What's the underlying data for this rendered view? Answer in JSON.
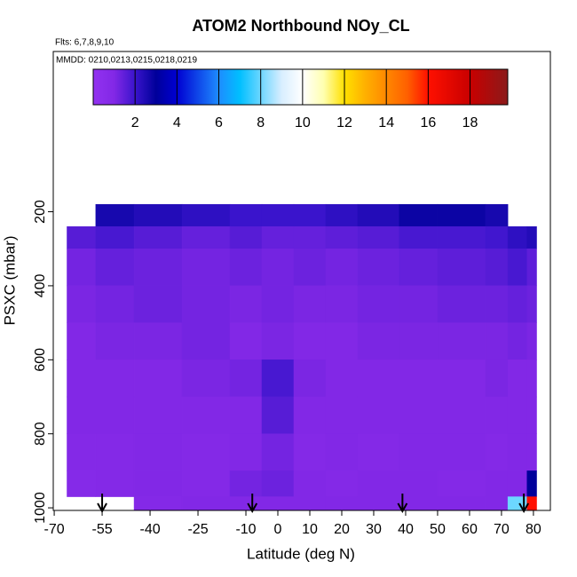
{
  "chart_data": {
    "type": "curtain",
    "title": "ATOM2 Northbound NOy_CL",
    "subtitle": "Flts: 6,7,8,9,10",
    "annotation": "MMDD: 0210,0213,0215,0218,0219",
    "x_label": "Latitude (deg N)",
    "y_label": "PSXC (mbar)",
    "xlim": [
      -70.3,
      85.3
    ],
    "xticks": [
      -70,
      -55,
      -40,
      -25,
      -10,
      0,
      10,
      20,
      30,
      40,
      50,
      60,
      70,
      80
    ],
    "ylim": [
      1007,
      -233
    ],
    "yticks": [
      200,
      400,
      600,
      800,
      1000
    ],
    "clim": [
      0,
      19.8
    ],
    "colorbar_ticks": [
      2,
      4,
      6,
      8,
      10,
      12,
      14,
      16,
      18
    ],
    "colorscale": [
      [
        0,
        "#9232f0"
      ],
      [
        1,
        "#8228e6"
      ],
      [
        2,
        "#3a14cc"
      ],
      [
        3,
        "#00009a"
      ],
      [
        4,
        "#0000d2"
      ],
      [
        6,
        "#1e8cff"
      ],
      [
        7,
        "#00bfff"
      ],
      [
        9,
        "#d8eeff"
      ],
      [
        10,
        "#ffffff"
      ],
      [
        11,
        "#ffffb0"
      ],
      [
        12,
        "#ffe000"
      ],
      [
        13,
        "#ffb000"
      ],
      [
        15,
        "#ff6000"
      ],
      [
        16,
        "#ff1000"
      ],
      [
        18,
        "#c80000"
      ],
      [
        19.8,
        "#8b1a1a"
      ]
    ],
    "x_edges": [
      -66,
      -57,
      -45,
      -30,
      -15,
      -5,
      5,
      15,
      25,
      38,
      50,
      65,
      72,
      78,
      81
    ],
    "p_edges": [
      180,
      240,
      300,
      400,
      500,
      600,
      700,
      800,
      900,
      970,
      1007
    ],
    "values": [
      [
        null,
        2.6,
        2.4,
        2.2,
        2.0,
        2.0,
        2.0,
        2.2,
        2.4,
        2.8,
        2.8,
        2.6,
        null,
        null
      ],
      [
        1.6,
        1.8,
        1.6,
        1.4,
        1.6,
        1.4,
        1.4,
        1.5,
        1.6,
        1.8,
        1.8,
        1.9,
        2.2,
        2.4
      ],
      [
        1.2,
        1.4,
        1.3,
        1.2,
        1.3,
        1.2,
        1.3,
        1.2,
        1.3,
        1.4,
        1.5,
        1.6,
        1.8,
        1.5
      ],
      [
        1.1,
        1.2,
        1.3,
        1.2,
        1.1,
        1.2,
        1.1,
        1.1,
        1.2,
        1.2,
        1.3,
        1.3,
        1.4,
        1.3
      ],
      [
        1.0,
        1.1,
        1.1,
        1.2,
        1.0,
        1.1,
        1.0,
        1.0,
        1.1,
        1.1,
        1.1,
        1.1,
        1.2,
        1.1
      ],
      [
        1.0,
        1.0,
        1.0,
        1.1,
        1.2,
        1.8,
        1.1,
        1.0,
        1.0,
        1.0,
        1.0,
        1.1,
        1.0,
        1.0
      ],
      [
        1.0,
        1.0,
        1.0,
        1.0,
        1.0,
        1.6,
        1.0,
        1.0,
        1.0,
        1.0,
        1.0,
        1.0,
        1.0,
        1.0
      ],
      [
        0.9,
        0.9,
        1.0,
        0.9,
        1.0,
        1.2,
        0.9,
        1.0,
        0.9,
        1.0,
        1.0,
        0.9,
        1.0,
        1.0
      ],
      [
        0.8,
        0.9,
        1.0,
        0.9,
        1.2,
        1.3,
        1.0,
        0.9,
        1.0,
        1.0,
        0.9,
        1.0,
        1.0,
        3.0
      ],
      [
        null,
        null,
        0.9,
        1.0,
        1.0,
        1.0,
        1.0,
        1.0,
        1.0,
        1.0,
        1.0,
        1.0,
        8.0,
        16.0
      ]
    ],
    "arrows_x": [
      -55,
      -8,
      39,
      77
    ]
  }
}
